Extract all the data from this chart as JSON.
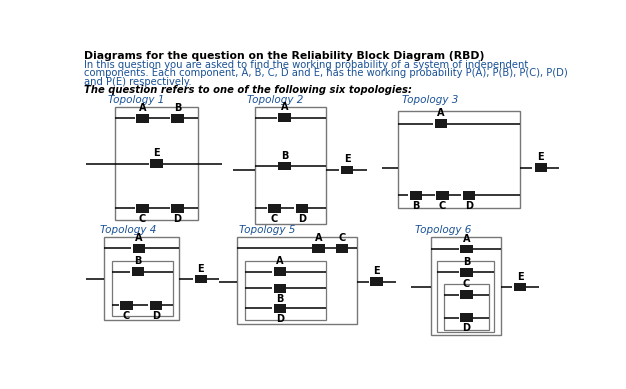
{
  "title": "Diagrams for the question on the Reliability Block Diagram (RBD)",
  "body_line1": "In this question you are asked to find the working probability of a system of independent",
  "body_line2": "components. Each component, A, B, C, D and E, has the working probability P(A), P(B), P(C), P(D)",
  "body_line3": "and P(E) respectively.",
  "italic_text": "The question refers to one of the following six topologies:",
  "topology_labels": [
    "Topology 1",
    "Topology 2",
    "Topology 3",
    "Topology 4",
    "Topology 5",
    "Topology 6"
  ],
  "bg_color": "#ffffff",
  "text_color": "#000000",
  "blue_color": "#1a5296",
  "block_color": "#1a1a1a",
  "line_color": "#000000",
  "box_color": "#777777"
}
